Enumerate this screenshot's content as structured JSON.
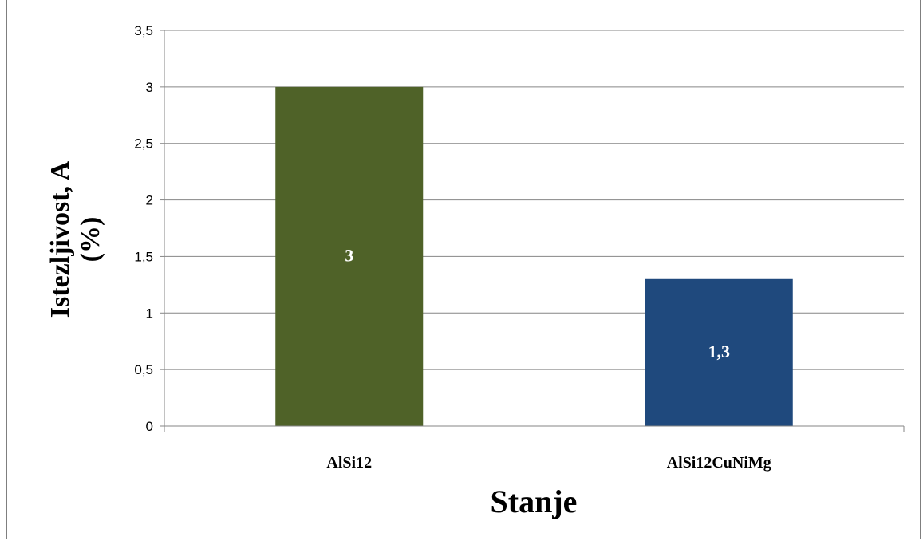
{
  "chart_data": {
    "type": "bar",
    "categories": [
      "AlSi12",
      "AlSi12CuNiMg"
    ],
    "values": [
      3,
      1.3
    ],
    "value_labels": [
      "3",
      "1,3"
    ],
    "bar_colors": [
      "#4f6228",
      "#1f497d"
    ],
    "xlabel": "Stanje",
    "ylabel": "Istezljivost, A (%)",
    "ylabel_lines": [
      "Istezljivost, A",
      "(%)"
    ],
    "ylim": [
      0,
      3.5
    ],
    "yticks": [
      0,
      0.5,
      1,
      1.5,
      2,
      2.5,
      3,
      3.5
    ],
    "ytick_labels": [
      "0",
      "0,5",
      "1",
      "1,5",
      "2",
      "2,5",
      "3",
      "3,5"
    ],
    "grid": true,
    "gridline_color": "#868686"
  }
}
